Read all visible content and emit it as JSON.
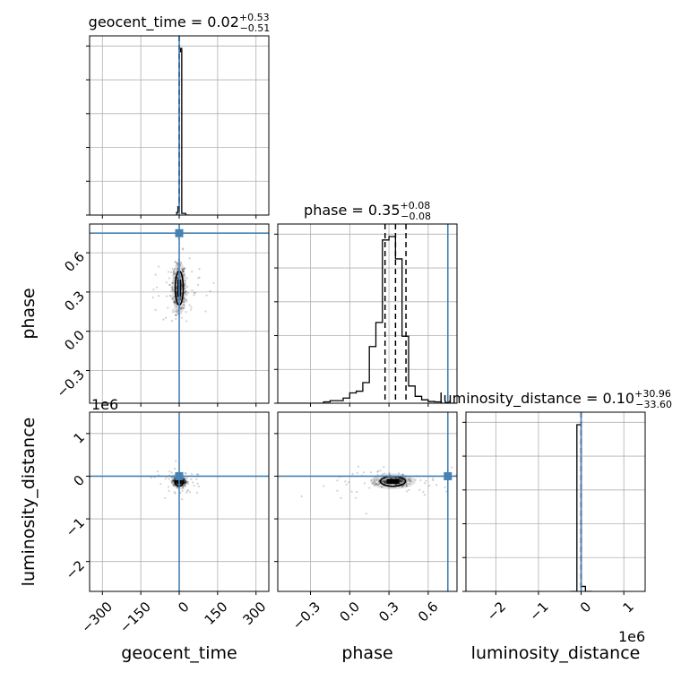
{
  "chart_data": {
    "type": "corner",
    "parameters": [
      "geocent_time",
      "phase",
      "luminosity_distance"
    ],
    "truths": {
      "geocent_time": 0,
      "phase": 0.75,
      "luminosity_distance": 0
    },
    "ranges": {
      "geocent_time": [
        -350,
        350
      ],
      "phase": [
        -0.55,
        0.82
      ],
      "luminosity_distance": [
        -2700000,
        1500000
      ]
    },
    "ticks": {
      "geocent_time": [
        -300,
        -150,
        0,
        150,
        300
      ],
      "phase": [
        -0.3,
        0.0,
        0.3,
        0.6
      ],
      "luminosity_distance": [
        -2000000,
        -1000000,
        0,
        1000000
      ]
    },
    "tick_labels": {
      "geocent_time": [
        "−300",
        "−150",
        "0",
        "150",
        "300"
      ],
      "phase": [
        "−0.3",
        "0.0",
        "0.3",
        "0.6"
      ],
      "luminosity_distance": [
        "−2",
        "−1",
        "0",
        "1"
      ]
    },
    "offset_text": "1e6",
    "titles": {
      "geocent_time": {
        "name": "geocent_time",
        "median": "0.02",
        "plus": "+0.53",
        "minus": "−0.51"
      },
      "phase": {
        "name": "phase",
        "median": "0.35",
        "plus": "+0.08",
        "minus": "−0.08"
      },
      "luminosity_distance": {
        "name": "luminosity_distance",
        "median": "0.10",
        "plus": "+30.96",
        "minus": "−33.60"
      }
    },
    "quantile_lines": {
      "geocent_time": [
        -0.49,
        0.02,
        0.55
      ],
      "phase": [
        0.27,
        0.35,
        0.43
      ],
      "luminosity_distance": [
        -33.5,
        0.1,
        31.06
      ]
    },
    "histograms": {
      "geocent_time": {
        "edges": [
          -10,
          -5,
          0,
          5,
          10,
          25,
          40
        ],
        "counts": [
          0.015,
          0.05,
          0.98,
          1.0,
          0.01,
          0
        ]
      },
      "phase": {
        "edges": [
          -0.55,
          -0.2,
          -0.15,
          -0.1,
          -0.05,
          0.0,
          0.05,
          0.1,
          0.15,
          0.2,
          0.25,
          0.3,
          0.35,
          0.4,
          0.45,
          0.5,
          0.55,
          0.6,
          0.65,
          0.7,
          0.82
        ],
        "counts": [
          0.0,
          0.008,
          0.015,
          0.015,
          0.03,
          0.06,
          0.07,
          0.12,
          0.33,
          0.47,
          0.95,
          0.97,
          0.84,
          0.39,
          0.1,
          0.04,
          0.02,
          0.01,
          0.008,
          0.0
        ]
      },
      "luminosity_distance": {
        "edges": [
          -250000,
          -100000,
          0,
          100000,
          250000
        ],
        "counts": [
          0.0,
          1.0,
          0.03,
          0.0
        ]
      }
    },
    "scatter_center": {
      "geocent_time": 0,
      "phase": 0.33,
      "luminosity_distance": -120000
    },
    "colors": {
      "truth": "#4682b4",
      "hist": "#000000",
      "grid": "#b0b0b0",
      "points": "#000000"
    }
  }
}
